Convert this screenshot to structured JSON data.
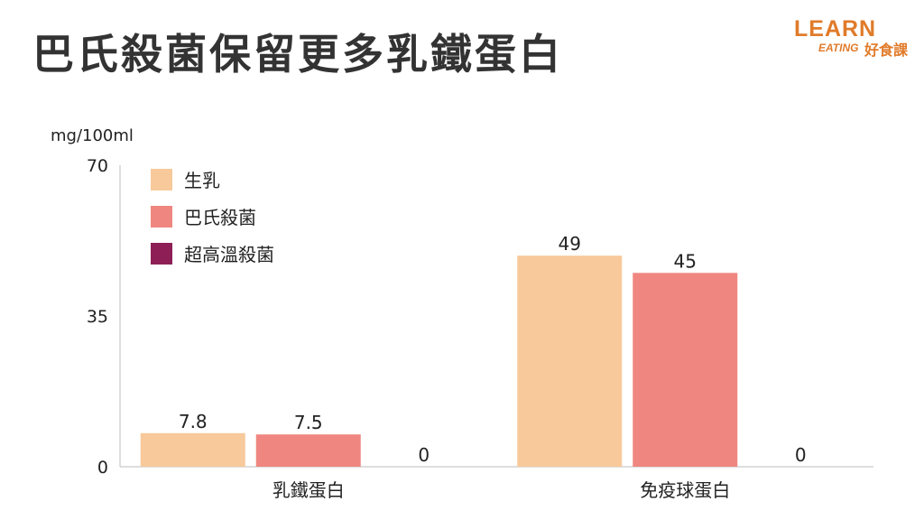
{
  "title": "巴氏殺菌保留更多乳鐵蛋白",
  "logo": {
    "line1": "LEARN",
    "line2": "EATING",
    "line3": "好食課",
    "color": "#e07b2a"
  },
  "chart_data": {
    "type": "bar",
    "title": "巴氏殺菌保留更多乳鐵蛋白",
    "ylabel": "mg/100ml",
    "xlabel": "",
    "ylim": [
      0,
      70
    ],
    "yticks": [
      0,
      35,
      70
    ],
    "categories": [
      "乳鐵蛋白",
      "免疫球蛋白"
    ],
    "series": [
      {
        "name": "生乳",
        "values": [
          7.8,
          49
        ],
        "labels": [
          "7.8",
          "49"
        ],
        "color": "#f7c99b"
      },
      {
        "name": "巴氏殺菌",
        "values": [
          7.5,
          45
        ],
        "labels": [
          "7.5",
          "45"
        ],
        "color": "#ef8780"
      },
      {
        "name": "超高溫殺菌",
        "values": [
          0,
          0
        ],
        "labels": [
          "0",
          "0"
        ],
        "color": "#8e1f56"
      }
    ],
    "legend_position": "top-left",
    "grid": false
  }
}
